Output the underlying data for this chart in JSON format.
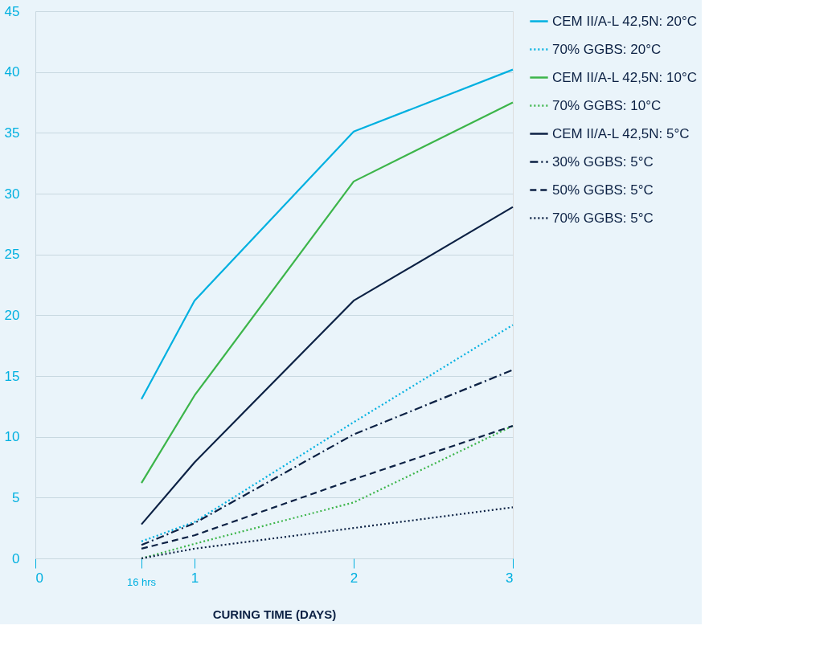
{
  "chart_data": {
    "type": "line",
    "xlabel": "CURING TIME (DAYS)",
    "x": [
      0.6667,
      1,
      2,
      3
    ],
    "xlim": [
      0,
      3
    ],
    "xticks": [
      0,
      {
        "value": 0.6667,
        "label": null
      },
      1,
      2,
      3
    ],
    "annotations": [
      "16 hrs"
    ],
    "ylim": [
      0,
      45
    ],
    "yticks": [
      0,
      5,
      10,
      15,
      20,
      25,
      30,
      35,
      40,
      45
    ],
    "grid": "y",
    "legend": "right",
    "series": [
      {
        "name": "CEM II/A-L 42,5N: 20°C",
        "color": "#00b0e0",
        "line_style": "solid",
        "values": [
          13.1,
          21.2,
          35.1,
          40.2
        ]
      },
      {
        "name": "70% GGBS: 20°C",
        "color": "#00b0e0",
        "line_style": "dotted",
        "values": [
          1.4,
          3.0,
          11.2,
          19.2
        ]
      },
      {
        "name": "CEM II/A-L 42,5N: 10°C",
        "color": "#3cb54a",
        "line_style": "solid",
        "values": [
          6.2,
          13.4,
          31.0,
          37.5
        ]
      },
      {
        "name": "70% GGBS: 10°C",
        "color": "#3cb54a",
        "line_style": "dotted",
        "values": [
          0,
          1.2,
          4.6,
          10.9
        ]
      },
      {
        "name": "CEM II/A-L 42,5N: 5°C",
        "color": "#0c2144",
        "line_style": "solid",
        "values": [
          2.8,
          7.9,
          21.2,
          28.9
        ]
      },
      {
        "name": "30% GGBS: 5°C",
        "color": "#0c2144",
        "line_style": "dashdot",
        "values": [
          1.1,
          2.9,
          10.2,
          15.5
        ]
      },
      {
        "name": "50% GGBS: 5°C",
        "color": "#0c2144",
        "line_style": "dashed",
        "values": [
          0.8,
          1.9,
          6.5,
          10.9
        ]
      },
      {
        "name": "70% GGBS: 5°C",
        "color": "#0c2144",
        "line_style": "dotted",
        "values": [
          0,
          0.8,
          2.5,
          4.2
        ]
      }
    ]
  }
}
